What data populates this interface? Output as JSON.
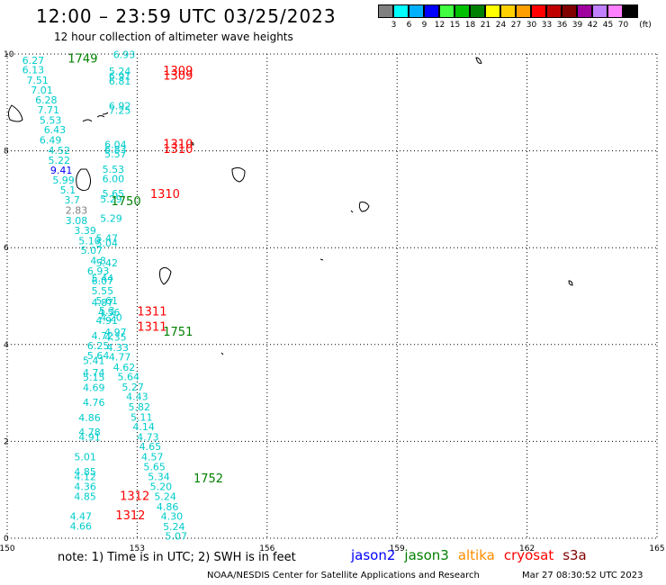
{
  "header": {
    "title": "12:00 – 23:59 UTC 03/25/2023",
    "subtitle": "12 hour collection of altimeter wave heights"
  },
  "colorbar": {
    "units": "(ft)",
    "ticks": [
      "3",
      "6",
      "9",
      "12",
      "15",
      "18",
      "21",
      "24",
      "27",
      "30",
      "33",
      "36",
      "39",
      "42",
      "45",
      "70"
    ],
    "colors": [
      "#808080",
      "#00ffff",
      "#00b0ff",
      "#0000ff",
      "#40ff40",
      "#00c000",
      "#008000",
      "#ffff00",
      "#ffd000",
      "#ffa000",
      "#ff0000",
      "#c00000",
      "#800000",
      "#a000a0",
      "#c080ff",
      "#ff80ff",
      "#000000"
    ]
  },
  "axes": {
    "x_ticks": [
      "150",
      "153",
      "156",
      "159",
      "162",
      "165"
    ],
    "y_ticks": [
      "0",
      "2",
      "4",
      "6",
      "8",
      "10"
    ]
  },
  "legend": {
    "note": "note:  1) Time is in UTC;  2) SWH is in feet",
    "satellites": [
      {
        "name": "jason2",
        "color": "#0000ff"
      },
      {
        "name": "jason3",
        "color": "#008000"
      },
      {
        "name": "altika",
        "color": "#ff8c00"
      },
      {
        "name": "cryosat",
        "color": "#ff0000"
      },
      {
        "name": "s3a",
        "color": "#800000"
      }
    ]
  },
  "footer": {
    "credit": "NOAA/NESDIS Center for Satellite Applications and Research",
    "timestamp": "Mar 27 08:30:52 UTC 2023"
  },
  "chart_data": {
    "type": "scatter",
    "title": "12:00 – 23:59 UTC 03/25/2023",
    "subtitle": "12 hour collection of altimeter wave heights",
    "xlim": [
      150,
      165
    ],
    "ylim": [
      0,
      10
    ],
    "grid": true,
    "time_labels": [
      {
        "label": "1749",
        "x": 151.4,
        "y": 9.82,
        "color": "#008000"
      },
      {
        "label": "1309",
        "x": 153.6,
        "y": 9.57,
        "color": "#ff0000"
      },
      {
        "label": "1309",
        "x": 153.6,
        "y": 9.47,
        "color": "#ff0000"
      },
      {
        "label": "1310",
        "x": 153.6,
        "y": 8.06,
        "color": "#ff0000"
      },
      {
        "label": "1310",
        "x": 153.6,
        "y": 7.96,
        "color": "#ff0000"
      },
      {
        "label": "1310",
        "x": 153.3,
        "y": 7.03,
        "color": "#ff0000"
      },
      {
        "label": "1750",
        "x": 152.4,
        "y": 6.88,
        "color": "#008000"
      },
      {
        "label": "1311",
        "x": 153.0,
        "y": 4.6,
        "color": "#ff0000"
      },
      {
        "label": "1311",
        "x": 153.0,
        "y": 4.28,
        "color": "#ff0000"
      },
      {
        "label": "1751",
        "x": 153.6,
        "y": 4.18,
        "color": "#008000"
      },
      {
        "label": "1752",
        "x": 154.3,
        "y": 1.15,
        "color": "#008000"
      },
      {
        "label": "1312",
        "x": 152.6,
        "y": 0.79,
        "color": "#ff0000"
      },
      {
        "label": "1312",
        "x": 152.5,
        "y": 0.39,
        "color": "#ff0000"
      }
    ],
    "points": [
      {
        "x": 150.6,
        "y": 9.8,
        "v": "6.27",
        "color": "#00cccc"
      },
      {
        "x": 150.6,
        "y": 9.6,
        "v": "6.13",
        "color": "#00cccc"
      },
      {
        "x": 150.7,
        "y": 9.39,
        "v": "7.51",
        "color": "#00cccc"
      },
      {
        "x": 150.8,
        "y": 9.18,
        "v": "7.01",
        "color": "#00cccc"
      },
      {
        "x": 150.9,
        "y": 8.98,
        "v": "6.28",
        "color": "#00cccc"
      },
      {
        "x": 150.95,
        "y": 8.77,
        "v": "7.71",
        "color": "#00cccc"
      },
      {
        "x": 151.0,
        "y": 8.56,
        "v": "5.53",
        "color": "#00cccc"
      },
      {
        "x": 151.1,
        "y": 8.36,
        "v": "6.43",
        "color": "#00cccc"
      },
      {
        "x": 151.0,
        "y": 8.15,
        "v": "6.49",
        "color": "#00cccc"
      },
      {
        "x": 151.2,
        "y": 7.94,
        "v": "4.52",
        "color": "#00cccc"
      },
      {
        "x": 151.2,
        "y": 7.73,
        "v": "5.22",
        "color": "#00cccc"
      },
      {
        "x": 151.25,
        "y": 7.53,
        "v": "9.41",
        "color": "#0000ff"
      },
      {
        "x": 151.3,
        "y": 7.32,
        "v": "5.99",
        "color": "#00cccc"
      },
      {
        "x": 151.4,
        "y": 7.12,
        "v": "5.1",
        "color": "#00cccc"
      },
      {
        "x": 151.5,
        "y": 6.91,
        "v": "3.7",
        "color": "#00cccc"
      },
      {
        "x": 151.6,
        "y": 6.7,
        "v": "2.83",
        "color": "#808080"
      },
      {
        "x": 151.6,
        "y": 6.49,
        "v": "3.08",
        "color": "#00cccc"
      },
      {
        "x": 151.8,
        "y": 6.28,
        "v": "3.39",
        "color": "#00cccc"
      },
      {
        "x": 151.9,
        "y": 6.07,
        "v": "5.10",
        "color": "#00cccc"
      },
      {
        "x": 151.95,
        "y": 5.87,
        "v": "5.07",
        "color": "#00cccc"
      },
      {
        "x": 152.1,
        "y": 5.66,
        "v": "4.8",
        "color": "#00cccc"
      },
      {
        "x": 152.1,
        "y": 5.45,
        "v": "6.93",
        "color": "#00cccc"
      },
      {
        "x": 152.2,
        "y": 5.24,
        "v": "6.07",
        "color": "#00cccc"
      },
      {
        "x": 152.2,
        "y": 5.04,
        "v": "5.55",
        "color": "#00cccc"
      },
      {
        "x": 152.3,
        "y": 4.83,
        "v": "5.61",
        "color": "#00cccc"
      },
      {
        "x": 152.3,
        "y": 4.63,
        "v": "5.3",
        "color": "#00cccc"
      },
      {
        "x": 152.3,
        "y": 4.42,
        "v": "4.91",
        "color": "#00cccc"
      },
      {
        "x": 152.2,
        "y": 4.11,
        "v": "4.72",
        "color": "#00cccc"
      },
      {
        "x": 152.1,
        "y": 3.9,
        "v": "6.25",
        "color": "#00cccc"
      },
      {
        "x": 152.1,
        "y": 3.7,
        "v": "5.64",
        "color": "#00cccc"
      },
      {
        "x": 152.0,
        "y": 3.6,
        "v": "5.41",
        "color": "#00cccc"
      },
      {
        "x": 152.0,
        "y": 3.35,
        "v": "4.74",
        "color": "#00cccc"
      },
      {
        "x": 152.0,
        "y": 3.25,
        "v": "5.15",
        "color": "#00cccc"
      },
      {
        "x": 152.0,
        "y": 3.04,
        "v": "4.69",
        "color": "#00cccc"
      },
      {
        "x": 152.0,
        "y": 2.73,
        "v": "4.76",
        "color": "#00cccc"
      },
      {
        "x": 151.9,
        "y": 2.42,
        "v": "4.86",
        "color": "#00cccc"
      },
      {
        "x": 151.9,
        "y": 2.12,
        "v": "4.78",
        "color": "#00cccc"
      },
      {
        "x": 151.9,
        "y": 2.02,
        "v": "4.91",
        "color": "#00cccc"
      },
      {
        "x": 151.8,
        "y": 1.61,
        "v": "5.01",
        "color": "#00cccc"
      },
      {
        "x": 151.8,
        "y": 1.3,
        "v": "4.85",
        "color": "#00cccc"
      },
      {
        "x": 151.8,
        "y": 1.2,
        "v": "4.12",
        "color": "#00cccc"
      },
      {
        "x": 151.8,
        "y": 0.99,
        "v": "4.36",
        "color": "#00cccc"
      },
      {
        "x": 151.8,
        "y": 0.79,
        "v": "4.85",
        "color": "#00cccc"
      },
      {
        "x": 151.7,
        "y": 0.38,
        "v": "4.47",
        "color": "#00cccc"
      },
      {
        "x": 151.7,
        "y": 0.18,
        "v": "4.66",
        "color": "#00cccc"
      },
      {
        "x": 152.7,
        "y": 9.92,
        "v": "6.93",
        "color": "#00cccc"
      },
      {
        "x": 152.6,
        "y": 9.57,
        "v": "5.24",
        "color": "#00cccc"
      },
      {
        "x": 152.6,
        "y": 9.47,
        "v": "6.91",
        "color": "#00cccc"
      },
      {
        "x": 152.6,
        "y": 9.37,
        "v": "6.81",
        "color": "#00cccc"
      },
      {
        "x": 152.6,
        "y": 8.86,
        "v": "6.92",
        "color": "#00cccc"
      },
      {
        "x": 152.6,
        "y": 8.76,
        "v": "7.25",
        "color": "#00cccc"
      },
      {
        "x": 152.5,
        "y": 8.06,
        "v": "6.04",
        "color": "#00cccc"
      },
      {
        "x": 152.5,
        "y": 7.96,
        "v": "6.83",
        "color": "#00cccc"
      },
      {
        "x": 152.5,
        "y": 7.86,
        "v": "5.57",
        "color": "#00cccc"
      },
      {
        "x": 152.45,
        "y": 7.55,
        "v": "5.53",
        "color": "#00cccc"
      },
      {
        "x": 152.45,
        "y": 7.35,
        "v": "6.00",
        "color": "#00cccc"
      },
      {
        "x": 152.45,
        "y": 7.04,
        "v": "5.65",
        "color": "#00cccc"
      },
      {
        "x": 152.4,
        "y": 6.93,
        "v": "5.29",
        "color": "#00cccc"
      },
      {
        "x": 152.4,
        "y": 6.53,
        "v": "5.29",
        "color": "#00cccc"
      },
      {
        "x": 152.3,
        "y": 6.12,
        "v": "5.47",
        "color": "#00cccc"
      },
      {
        "x": 152.3,
        "y": 6.02,
        "v": "5.04",
        "color": "#00cccc"
      },
      {
        "x": 152.3,
        "y": 5.61,
        "v": "5.42",
        "color": "#00cccc"
      },
      {
        "x": 152.2,
        "y": 5.3,
        "v": "5.44",
        "color": "#00cccc"
      },
      {
        "x": 152.2,
        "y": 4.8,
        "v": "4.87",
        "color": "#00cccc"
      },
      {
        "x": 152.35,
        "y": 4.59,
        "v": "4.56",
        "color": "#00cccc"
      },
      {
        "x": 152.4,
        "y": 4.49,
        "v": "4.20",
        "color": "#00cccc"
      },
      {
        "x": 152.5,
        "y": 4.18,
        "v": "4.97",
        "color": "#00cccc"
      },
      {
        "x": 152.5,
        "y": 4.08,
        "v": "4.35",
        "color": "#00cccc"
      },
      {
        "x": 152.55,
        "y": 3.87,
        "v": "4.33",
        "color": "#00cccc"
      },
      {
        "x": 152.6,
        "y": 3.67,
        "v": "4.77",
        "color": "#00cccc"
      },
      {
        "x": 152.7,
        "y": 3.46,
        "v": "4.62",
        "color": "#00cccc"
      },
      {
        "x": 152.8,
        "y": 3.26,
        "v": "5.64",
        "color": "#00cccc"
      },
      {
        "x": 152.9,
        "y": 3.05,
        "v": "5.27",
        "color": "#00cccc"
      },
      {
        "x": 153.0,
        "y": 2.85,
        "v": "4.43",
        "color": "#00cccc"
      },
      {
        "x": 153.05,
        "y": 2.64,
        "v": "5.82",
        "color": "#00cccc"
      },
      {
        "x": 153.1,
        "y": 2.43,
        "v": "5.11",
        "color": "#00cccc"
      },
      {
        "x": 153.15,
        "y": 2.23,
        "v": "4.14",
        "color": "#00cccc"
      },
      {
        "x": 153.25,
        "y": 2.02,
        "v": "4.73",
        "color": "#00cccc"
      },
      {
        "x": 153.3,
        "y": 1.82,
        "v": "4.65",
        "color": "#00cccc"
      },
      {
        "x": 153.35,
        "y": 1.61,
        "v": "4.57",
        "color": "#00cccc"
      },
      {
        "x": 153.4,
        "y": 1.4,
        "v": "5.65",
        "color": "#00cccc"
      },
      {
        "x": 153.5,
        "y": 1.2,
        "v": "5.34",
        "color": "#00cccc"
      },
      {
        "x": 153.55,
        "y": 0.99,
        "v": "5.20",
        "color": "#00cccc"
      },
      {
        "x": 153.65,
        "y": 0.79,
        "v": "5.24",
        "color": "#00cccc"
      },
      {
        "x": 153.7,
        "y": 0.58,
        "v": "4.86",
        "color": "#00cccc"
      },
      {
        "x": 153.8,
        "y": 0.38,
        "v": "4.30",
        "color": "#00cccc"
      },
      {
        "x": 153.85,
        "y": 0.17,
        "v": "5.24",
        "color": "#00cccc"
      },
      {
        "x": 153.9,
        "y": -0.03,
        "v": "5.07",
        "color": "#00cccc"
      }
    ]
  }
}
